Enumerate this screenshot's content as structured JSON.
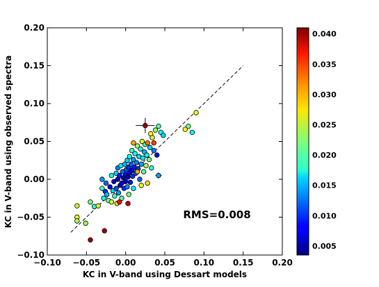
{
  "chart_data": {
    "type": "scatter",
    "xlabel": "KC in V-band using Dessart models",
    "ylabel": "KC in V-band using observed spectra",
    "xlim": [
      -0.1,
      0.2
    ],
    "ylim": [
      -0.1,
      0.2
    ],
    "xticks": [
      "−0.10",
      "−0.05",
      "0.00",
      "0.05",
      "0.10",
      "0.15",
      "0.20"
    ],
    "yticks": [
      "−0.10",
      "−0.05",
      "0.00",
      "0.05",
      "0.10",
      "0.15",
      "0.20"
    ],
    "xtick_values": [
      -0.1,
      -0.05,
      0.0,
      0.05,
      0.1,
      0.15,
      0.2
    ],
    "ytick_values": [
      -0.1,
      -0.05,
      0.0,
      0.05,
      0.1,
      0.15,
      0.2
    ],
    "annotation": "RMS=0.008",
    "grid": false,
    "reference_line": {
      "x": [
        -0.07,
        0.15
      ],
      "y": [
        -0.07,
        0.15
      ],
      "style": "dashed"
    },
    "colorbar": {
      "range": [
        0.0035,
        0.041
      ],
      "ticks": [
        "0.005",
        "0.010",
        "0.015",
        "0.020",
        "0.025",
        "0.030",
        "0.035",
        "0.040"
      ],
      "tick_values": [
        0.005,
        0.01,
        0.015,
        0.02,
        0.025,
        0.03,
        0.035,
        0.04
      ],
      "colormap": "jet"
    },
    "errorbar_points": [
      {
        "x": 0.025,
        "y": 0.071,
        "xerr": 0.012,
        "yerr": 0.01,
        "c": 0.04
      },
      {
        "x": 0.042,
        "y": 0.005,
        "xerr": 0.004,
        "yerr": 0.004,
        "c": 0.014
      }
    ],
    "points": [
      {
        "x": -0.062,
        "y": -0.05,
        "c": 0.026
      },
      {
        "x": -0.062,
        "y": -0.055,
        "c": 0.024
      },
      {
        "x": -0.062,
        "y": -0.035,
        "c": 0.025
      },
      {
        "x": -0.051,
        "y": -0.058,
        "c": 0.023
      },
      {
        "x": -0.045,
        "y": -0.03,
        "c": 0.022
      },
      {
        "x": -0.04,
        "y": -0.036,
        "c": 0.02
      },
      {
        "x": -0.035,
        "y": -0.035,
        "c": 0.025
      },
      {
        "x": -0.045,
        "y": -0.08,
        "c": 0.04
      },
      {
        "x": -0.027,
        "y": -0.068,
        "c": 0.04
      },
      {
        "x": -0.03,
        "y": 0.0,
        "c": 0.014
      },
      {
        "x": -0.03,
        "y": -0.012,
        "c": 0.02
      },
      {
        "x": -0.028,
        "y": -0.025,
        "c": 0.018
      },
      {
        "x": -0.026,
        "y": -0.016,
        "c": 0.01
      },
      {
        "x": -0.025,
        "y": -0.005,
        "c": 0.012
      },
      {
        "x": -0.024,
        "y": -0.02,
        "c": 0.015
      },
      {
        "x": -0.022,
        "y": -0.028,
        "c": 0.022
      },
      {
        "x": -0.02,
        "y": -0.01,
        "c": 0.008
      },
      {
        "x": -0.018,
        "y": 0.005,
        "c": 0.018
      },
      {
        "x": -0.018,
        "y": -0.03,
        "c": 0.025
      },
      {
        "x": -0.016,
        "y": -0.015,
        "c": 0.016
      },
      {
        "x": -0.015,
        "y": -0.003,
        "c": 0.006
      },
      {
        "x": -0.014,
        "y": -0.022,
        "c": 0.02
      },
      {
        "x": -0.012,
        "y": 0.008,
        "c": 0.016
      },
      {
        "x": -0.012,
        "y": -0.012,
        "c": 0.011
      },
      {
        "x": -0.011,
        "y": -0.032,
        "c": 0.028
      },
      {
        "x": -0.01,
        "y": 0.015,
        "c": 0.013
      },
      {
        "x": -0.01,
        "y": 0.0,
        "c": 0.005
      },
      {
        "x": -0.009,
        "y": -0.018,
        "c": 0.014
      },
      {
        "x": -0.008,
        "y": 0.005,
        "c": 0.009
      },
      {
        "x": -0.007,
        "y": -0.008,
        "c": 0.006
      },
      {
        "x": -0.006,
        "y": 0.018,
        "c": 0.017
      },
      {
        "x": -0.005,
        "y": -0.005,
        "c": 0.007
      },
      {
        "x": -0.005,
        "y": -0.025,
        "c": 0.021
      },
      {
        "x": -0.004,
        "y": 0.01,
        "c": 0.012
      },
      {
        "x": -0.003,
        "y": 0.002,
        "c": 0.005
      },
      {
        "x": -0.002,
        "y": -0.012,
        "c": 0.01
      },
      {
        "x": -0.001,
        "y": 0.02,
        "c": 0.015
      },
      {
        "x": 0.0,
        "y": 0.006,
        "c": 0.008
      },
      {
        "x": 0.0,
        "y": -0.003,
        "c": 0.006
      },
      {
        "x": 0.001,
        "y": 0.013,
        "c": 0.011
      },
      {
        "x": 0.002,
        "y": -0.01,
        "c": 0.013
      },
      {
        "x": 0.002,
        "y": 0.025,
        "c": 0.016
      },
      {
        "x": 0.003,
        "y": 0.003,
        "c": 0.005
      },
      {
        "x": 0.004,
        "y": 0.016,
        "c": 0.01
      },
      {
        "x": 0.004,
        "y": -0.02,
        "c": 0.022
      },
      {
        "x": 0.005,
        "y": 0.009,
        "c": 0.007
      },
      {
        "x": 0.005,
        "y": 0.03,
        "c": 0.018
      },
      {
        "x": 0.006,
        "y": -0.004,
        "c": 0.009
      },
      {
        "x": 0.007,
        "y": 0.02,
        "c": 0.012
      },
      {
        "x": 0.008,
        "y": 0.012,
        "c": 0.008
      },
      {
        "x": 0.008,
        "y": 0.038,
        "c": 0.02
      },
      {
        "x": 0.009,
        "y": 0.004,
        "c": 0.01
      },
      {
        "x": 0.01,
        "y": 0.026,
        "c": 0.014
      },
      {
        "x": 0.01,
        "y": -0.012,
        "c": 0.017
      },
      {
        "x": 0.011,
        "y": 0.016,
        "c": 0.009
      },
      {
        "x": 0.012,
        "y": 0.034,
        "c": 0.018
      },
      {
        "x": 0.013,
        "y": 0.008,
        "c": 0.011
      },
      {
        "x": 0.014,
        "y": 0.022,
        "c": 0.013
      },
      {
        "x": 0.015,
        "y": 0.044,
        "c": 0.023
      },
      {
        "x": 0.016,
        "y": 0.014,
        "c": 0.01
      },
      {
        "x": 0.017,
        "y": 0.03,
        "c": 0.016
      },
      {
        "x": 0.018,
        "y": 0.0,
        "c": 0.012
      },
      {
        "x": 0.019,
        "y": 0.04,
        "c": 0.019
      },
      {
        "x": 0.02,
        "y": 0.02,
        "c": 0.014
      },
      {
        "x": 0.021,
        "y": 0.05,
        "c": 0.026
      },
      {
        "x": 0.022,
        "y": 0.028,
        "c": 0.017
      },
      {
        "x": 0.023,
        "y": 0.01,
        "c": 0.021
      },
      {
        "x": 0.024,
        "y": 0.036,
        "c": 0.015
      },
      {
        "x": 0.025,
        "y": 0.046,
        "c": 0.02
      },
      {
        "x": 0.026,
        "y": 0.018,
        "c": 0.024
      },
      {
        "x": 0.027,
        "y": 0.032,
        "c": 0.018
      },
      {
        "x": 0.028,
        "y": 0.048,
        "c": 0.032
      },
      {
        "x": 0.03,
        "y": 0.026,
        "c": 0.022
      },
      {
        "x": 0.031,
        "y": 0.042,
        "c": 0.016
      },
      {
        "x": 0.032,
        "y": 0.06,
        "c": 0.027
      },
      {
        "x": 0.033,
        "y": 0.015,
        "c": 0.019
      },
      {
        "x": 0.034,
        "y": 0.055,
        "c": 0.025
      },
      {
        "x": 0.036,
        "y": 0.038,
        "c": 0.013
      },
      {
        "x": 0.038,
        "y": 0.065,
        "c": 0.023
      },
      {
        "x": 0.04,
        "y": 0.032,
        "c": 0.008
      },
      {
        "x": 0.042,
        "y": 0.07,
        "c": 0.021
      },
      {
        "x": 0.045,
        "y": 0.062,
        "c": 0.018
      },
      {
        "x": 0.048,
        "y": 0.058,
        "c": 0.016
      },
      {
        "x": 0.076,
        "y": 0.066,
        "c": 0.027
      },
      {
        "x": 0.08,
        "y": 0.07,
        "c": 0.022
      },
      {
        "x": 0.085,
        "y": 0.062,
        "c": 0.018
      },
      {
        "x": 0.09,
        "y": 0.088,
        "c": 0.026
      },
      {
        "x": 0.01,
        "y": 0.048,
        "c": 0.03
      },
      {
        "x": 0.02,
        "y": -0.008,
        "c": 0.026
      },
      {
        "x": 0.028,
        "y": -0.005,
        "c": 0.028
      },
      {
        "x": -0.008,
        "y": -0.03,
        "c": 0.036
      },
      {
        "x": 0.003,
        "y": -0.032,
        "c": 0.038
      },
      {
        "x": 0.036,
        "y": 0.048,
        "c": 0.034
      },
      {
        "x": 0.015,
        "y": 0.01,
        "c": 0.03
      }
    ]
  }
}
